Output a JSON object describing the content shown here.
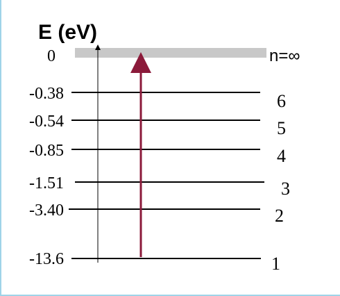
{
  "diagram": {
    "axis_title": "E (eV)",
    "continuum": {
      "energy_label": "0",
      "n_label": "n=∞"
    },
    "levels": [
      {
        "n": "6",
        "energy": "-0.38"
      },
      {
        "n": "5",
        "energy": "-0.54"
      },
      {
        "n": "4",
        "energy": "-0.85"
      },
      {
        "n": "3",
        "energy": "-1.51"
      },
      {
        "n": "2",
        "energy": "-3.40"
      },
      {
        "n": "1",
        "energy": "-13.6"
      }
    ],
    "transition": {
      "from_n": "1",
      "to_n": "∞"
    },
    "colors": {
      "level_line": "#000000",
      "continuum_band": "#c8c8c8",
      "arrow": "#8b1a3a",
      "frame_border": "#9fd3e8"
    }
  }
}
